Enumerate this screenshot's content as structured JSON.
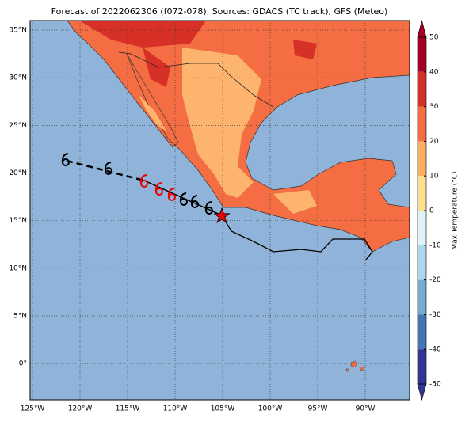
{
  "title": "Forecast of 2022062306 (f072-078), Sources: GDACS (TC track), GFS (Meteo)",
  "lon_ticks": [
    {
      "value": -125,
      "label": "125°W"
    },
    {
      "value": -120,
      "label": "120°W"
    },
    {
      "value": -115,
      "label": "115°W"
    },
    {
      "value": -110,
      "label": "110°W"
    },
    {
      "value": -105,
      "label": "105°W"
    },
    {
      "value": -100,
      "label": "100°W"
    },
    {
      "value": -95,
      "label": "95°W"
    },
    {
      "value": -90,
      "label": "90°W"
    }
  ],
  "lat_ticks": [
    {
      "value": 35,
      "label": "35°N"
    },
    {
      "value": 30,
      "label": "30°N"
    },
    {
      "value": 25,
      "label": "25°N"
    },
    {
      "value": 20,
      "label": "20°N"
    },
    {
      "value": 15,
      "label": "15°N"
    },
    {
      "value": 10,
      "label": "10°N"
    },
    {
      "value": 5,
      "label": "5°N"
    },
    {
      "value": 0,
      "label": "0°"
    }
  ],
  "colorbar": {
    "label": "Max Temperature (°C)",
    "ticks": [
      50,
      40,
      30,
      20,
      10,
      0,
      -10,
      -20,
      -30,
      -40,
      -50
    ],
    "colors": [
      "#a50026",
      "#d73027",
      "#f46d43",
      "#fdae61",
      "#fee090",
      "#e0f3f8",
      "#abd9e9",
      "#74add1",
      "#4575b4",
      "#313695"
    ]
  }
}
